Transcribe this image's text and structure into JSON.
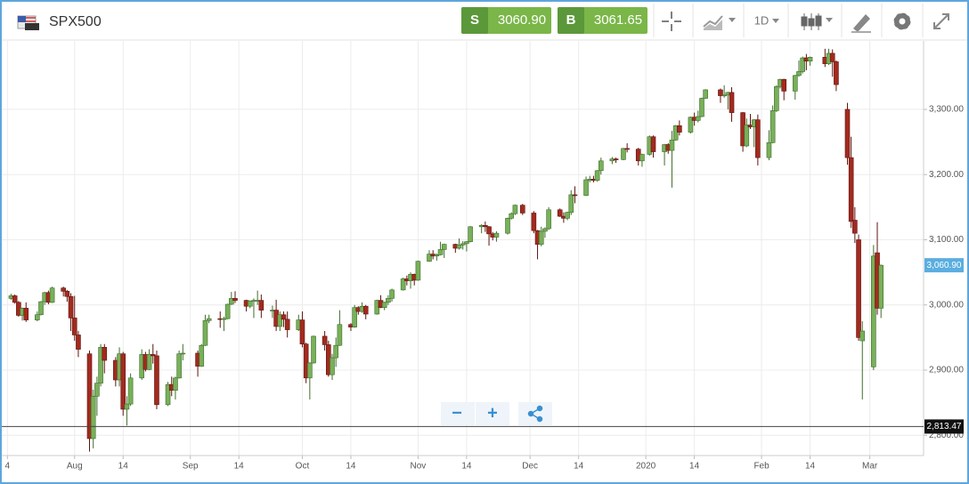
{
  "header": {
    "symbol": "SPX500",
    "sell_label": "S",
    "sell_price": "3060.90",
    "buy_label": "B",
    "buy_price": "3061.65",
    "timeframe": "1D"
  },
  "controls": {
    "zoom_out": "−",
    "zoom_in": "+"
  },
  "chart_data": {
    "type": "candlestick",
    "up_color": "#78b05a",
    "down_color": "#a32a1f",
    "grid": true,
    "xlim": [
      -1.5,
      245.4
    ],
    "ylim": [
      2769,
      3405
    ],
    "xticks": [
      {
        "value": 0,
        "label": "4"
      },
      {
        "value": 18,
        "label": "Aug"
      },
      {
        "value": 31,
        "label": "14"
      },
      {
        "value": 49,
        "label": "Sep"
      },
      {
        "value": 62,
        "label": "14"
      },
      {
        "value": 79,
        "label": "Oct"
      },
      {
        "value": 92,
        "label": "14"
      },
      {
        "value": 110,
        "label": "Nov"
      },
      {
        "value": 123,
        "label": "14"
      },
      {
        "value": 140,
        "label": "Dec"
      },
      {
        "value": 153,
        "label": "14"
      },
      {
        "value": 171,
        "label": "2020"
      },
      {
        "value": 184,
        "label": "14"
      },
      {
        "value": 202,
        "label": "Feb"
      },
      {
        "value": 215,
        "label": "14"
      },
      {
        "value": 231,
        "label": "Mar"
      }
    ],
    "yticks": [
      {
        "value": 2800,
        "label": "2,800.00"
      },
      {
        "value": 2900,
        "label": "2,900.00"
      },
      {
        "value": 3000,
        "label": "3,000.00"
      },
      {
        "value": 3100,
        "label": "3,100.00"
      },
      {
        "value": 3200,
        "label": "3,200.00"
      },
      {
        "value": 3300,
        "label": "3,300.00"
      }
    ],
    "last_price": {
      "value": 3060.9,
      "label": "3,060.90"
    },
    "price_line": {
      "value": 2813.47,
      "label": "2,813.47"
    },
    "x": [
      1,
      2,
      3,
      4,
      5,
      8,
      9,
      10,
      11,
      12,
      15,
      16,
      17,
      18,
      19,
      22,
      23,
      24,
      25,
      26,
      29,
      30,
      31,
      32,
      33,
      36,
      37,
      38,
      39,
      40,
      43,
      44,
      45,
      46,
      47,
      51,
      52,
      53,
      54,
      57,
      58,
      59,
      60,
      61,
      64,
      65,
      66,
      67,
      68,
      71,
      72,
      73,
      74,
      75,
      78,
      79,
      80,
      81,
      82,
      85,
      86,
      87,
      88,
      89,
      92,
      93,
      94,
      95,
      96,
      99,
      100,
      101,
      102,
      103,
      106,
      107,
      108,
      109,
      110,
      113,
      114,
      115,
      116,
      117,
      120,
      121,
      122,
      123,
      124,
      127,
      128,
      129,
      130,
      131,
      134,
      135,
      136,
      138,
      141,
      142,
      143,
      144,
      145,
      148,
      149,
      150,
      151,
      152,
      155,
      156,
      157,
      158,
      159,
      162,
      163,
      165,
      166,
      169,
      170,
      172,
      173,
      176,
      177,
      178,
      179,
      180,
      183,
      184,
      185,
      186,
      187,
      191,
      192,
      193,
      194,
      197,
      198,
      199,
      200,
      201,
      204,
      205,
      206,
      207,
      208,
      211,
      212,
      213,
      214,
      215,
      219,
      220,
      221,
      222,
      225,
      226,
      227,
      228,
      229,
      232,
      233,
      234
    ],
    "open": [
      3010,
      3014,
      3004,
      2984,
      2995,
      2977,
      2985,
      3005,
      3019,
      3004,
      3026,
      3021,
      3013,
      2980,
      2954,
      2925,
      2795,
      2860,
      2880,
      2935,
      2915,
      2885,
      2925,
      2840,
      2848,
      2888,
      2924,
      2901,
      2924,
      2922,
      2847,
      2878,
      2869,
      2888,
      2925,
      2926,
      2906,
      2938,
      2976,
      2979,
      2978,
      2979,
      3001,
      3010,
      3007,
      2998,
      3006,
      3007,
      3007,
      2992,
      2992,
      2967,
      2985,
      2978,
      2962,
      2977,
      2940,
      2888,
      2911,
      2952,
      2939,
      2893,
      2919,
      2938,
      2970,
      2966,
      2996,
      2990,
      2998,
      2986,
      3007,
      2996,
      3004,
      3010,
      3023,
      3040,
      3037,
      3047,
      3038,
      3067,
      3078,
      3075,
      3077,
      3085,
      3093,
      3087,
      3092,
      3094,
      3097,
      3120,
      3122,
      3120,
      3109,
      3104,
      3110,
      3133,
      3140,
      3153,
      3141,
      3114,
      3093,
      3113,
      3117,
      3146,
      3136,
      3133,
      3142,
      3169,
      3168,
      3192,
      3193,
      3191,
      3206,
      3221,
      3224,
      3223,
      3240,
      3239,
      3221,
      3231,
      3258,
      3235,
      3246,
      3237,
      3253,
      3275,
      3265,
      3288,
      3283,
      3289,
      3317,
      3330,
      3321,
      3322,
      3326,
      3295,
      3244,
      3276,
      3273,
      3284,
      3226,
      3249,
      3298,
      3335,
      3346,
      3328,
      3352,
      3358,
      3379,
      3374,
      3380,
      3370,
      3386,
      3373,
      3300,
      3226,
      3130,
      3100,
      2945,
      2905,
      3080,
      2995
    ],
    "high": [
      3017,
      3016,
      3006,
      2996,
      3004,
      2990,
      3006,
      3020,
      3022,
      3028,
      3028,
      3023,
      3018,
      3014,
      2960,
      2930,
      2870,
      2890,
      2940,
      2940,
      2920,
      2935,
      2928,
      2860,
      2895,
      2932,
      2928,
      2932,
      2940,
      2930,
      2882,
      2890,
      2890,
      2930,
      2940,
      2930,
      2940,
      2985,
      2985,
      2990,
      2982,
      3002,
      3020,
      3021,
      3008,
      3007,
      3010,
      3022,
      3016,
      2999,
      3008,
      2990,
      2990,
      2990,
      2985,
      2990,
      2942,
      2912,
      2953,
      2960,
      2945,
      2925,
      2950,
      2992,
      2972,
      3000,
      2998,
      3004,
      3000,
      3008,
      3015,
      3005,
      3015,
      3025,
      3042,
      3045,
      3050,
      3048,
      3068,
      3084,
      3084,
      3079,
      3097,
      3094,
      3094,
      3102,
      3098,
      3098,
      3121,
      3124,
      3128,
      3121,
      3112,
      3113,
      3134,
      3142,
      3154,
      3155,
      3144,
      3115,
      3120,
      3119,
      3150,
      3148,
      3142,
      3143,
      3176,
      3182,
      3197,
      3198,
      3198,
      3207,
      3226,
      3227,
      3226,
      3241,
      3248,
      3241,
      3232,
      3260,
      3260,
      3247,
      3248,
      3267,
      3276,
      3283,
      3289,
      3295,
      3298,
      3318,
      3331,
      3332,
      3337,
      3327,
      3334,
      3296,
      3286,
      3293,
      3285,
      3292,
      3268,
      3306,
      3337,
      3347,
      3347,
      3353,
      3375,
      3381,
      3385,
      3381,
      3393,
      3393,
      3392,
      3375,
      3310,
      3258,
      3150,
      3108,
      2975,
      3092,
      3127,
      3062
    ],
    "low": [
      3008,
      3002,
      2982,
      2976,
      2974,
      2975,
      2984,
      3000,
      3001,
      3003,
      3013,
      3005,
      2960,
      2945,
      2920,
      2775,
      2780,
      2830,
      2875,
      2895,
      2875,
      2875,
      2830,
      2815,
      2845,
      2885,
      2898,
      2900,
      2910,
      2840,
      2845,
      2860,
      2855,
      2887,
      2915,
      2890,
      2905,
      2937,
      2972,
      2965,
      2960,
      2978,
      3000,
      3003,
      2990,
      2995,
      2980,
      3000,
      2980,
      2980,
      2960,
      2960,
      2966,
      2950,
      2960,
      2935,
      2880,
      2855,
      2910,
      2930,
      2890,
      2885,
      2905,
      2937,
      2960,
      2965,
      2985,
      2988,
      2978,
      2985,
      2995,
      2992,
      3000,
      3005,
      3022,
      3030,
      3025,
      3030,
      3037,
      3066,
      3070,
      3068,
      3076,
      3072,
      3080,
      3085,
      3085,
      3082,
      3096,
      3110,
      3112,
      3091,
      3099,
      3097,
      3108,
      3131,
      3138,
      3138,
      3110,
      3070,
      3090,
      3103,
      3115,
      3135,
      3126,
      3130,
      3138,
      3156,
      3167,
      3188,
      3188,
      3189,
      3200,
      3216,
      3218,
      3222,
      3234,
      3214,
      3212,
      3229,
      3226,
      3214,
      3232,
      3180,
      3252,
      3260,
      3263,
      3275,
      3280,
      3288,
      3316,
      3310,
      3318,
      3300,
      3281,
      3235,
      3242,
      3270,
      3242,
      3214,
      3222,
      3248,
      3296,
      3332,
      3314,
      3315,
      3350,
      3355,
      3360,
      3367,
      3365,
      3368,
      3350,
      3328,
      3215,
      3118,
      3095,
      2945,
      2855,
      2900,
      2985,
      2980
    ],
    "close": [
      3014,
      3004,
      2984,
      2995,
      2977,
      2985,
      3005,
      3019,
      3004,
      3026,
      3021,
      3013,
      2980,
      2954,
      2932,
      2795,
      2860,
      2880,
      2935,
      2915,
      2885,
      2925,
      2840,
      2848,
      2888,
      2924,
      2901,
      2924,
      2922,
      2847,
      2878,
      2869,
      2888,
      2925,
      2926,
      2906,
      2938,
      2976,
      2979,
      2978,
      2979,
      3001,
      3010,
      3007,
      2998,
      3006,
      3007,
      3007,
      2992,
      2992,
      2967,
      2985,
      2978,
      2962,
      2977,
      2940,
      2888,
      2911,
      2952,
      2939,
      2893,
      2919,
      2938,
      2970,
      2966,
      2996,
      2990,
      2998,
      2986,
      3007,
      2996,
      3004,
      3010,
      3023,
      3040,
      3037,
      3047,
      3038,
      3067,
      3078,
      3075,
      3077,
      3085,
      3093,
      3087,
      3092,
      3094,
      3097,
      3120,
      3122,
      3120,
      3109,
      3104,
      3110,
      3133,
      3140,
      3153,
      3141,
      3114,
      3093,
      3113,
      3117,
      3146,
      3136,
      3133,
      3142,
      3169,
      3168,
      3192,
      3193,
      3191,
      3206,
      3221,
      3224,
      3223,
      3240,
      3239,
      3221,
      3231,
      3258,
      3235,
      3246,
      3237,
      3253,
      3275,
      3265,
      3288,
      3283,
      3289,
      3317,
      3330,
      3321,
      3322,
      3326,
      3295,
      3244,
      3276,
      3273,
      3284,
      3226,
      3249,
      3298,
      3335,
      3346,
      3328,
      3352,
      3358,
      3379,
      3374,
      3380,
      3370,
      3386,
      3373,
      3338,
      3226,
      3128,
      3110,
      2950,
      2960,
      3075,
      2995,
      3060.9
    ]
  }
}
